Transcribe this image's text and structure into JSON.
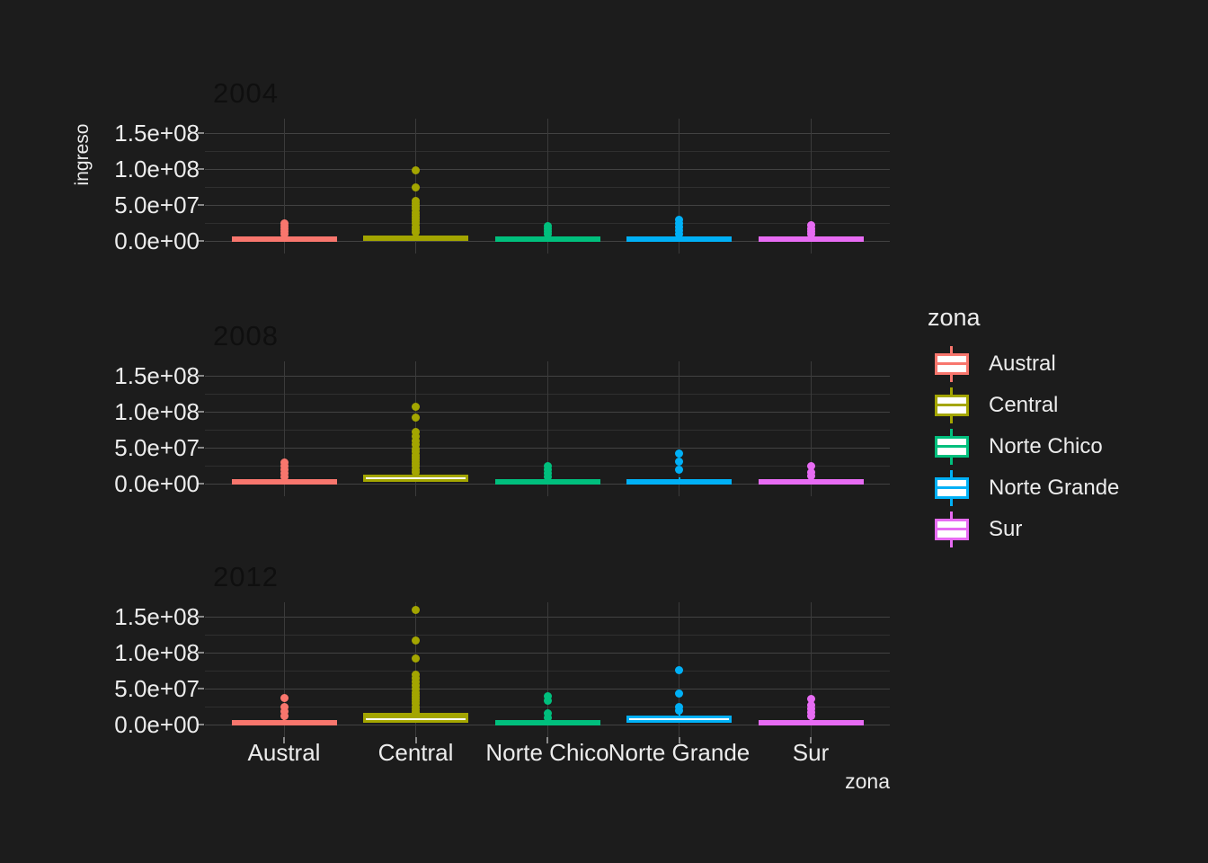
{
  "figure": {
    "background": "#1c1c1c",
    "text_color": "#ececec",
    "grid_major_color": "#424242",
    "grid_minor_color": "#2f2f2f",
    "grid_vertical_color": "#3b3b3b",
    "tick_mark_color": "#8a8a8a",
    "facet_title_color": "#0f0f0f"
  },
  "chart_data": {
    "type": "boxplot",
    "facet_variable": "year",
    "x_axis": {
      "label": "zona",
      "categories": [
        "Austral",
        "Central",
        "Norte Chico",
        "Norte Grande",
        "Sur"
      ]
    },
    "y_axis": {
      "label": "ingreso",
      "ticks": [
        {
          "value": 0,
          "label": "0.0e+00"
        },
        {
          "value": 50000000,
          "label": "5.0e+07"
        },
        {
          "value": 100000000,
          "label": "1.0e+08"
        },
        {
          "value": 150000000,
          "label": "1.5e+08"
        }
      ],
      "minor_tick_values": [
        25000000,
        75000000,
        125000000
      ],
      "range_bottom": -18750000,
      "range_top": 168750000
    },
    "legend": {
      "title": "zona",
      "items": [
        {
          "label": "Austral",
          "color": "#F8766D"
        },
        {
          "label": "Central",
          "color": "#A3A500"
        },
        {
          "label": "Norte Chico",
          "color": "#00BF7D"
        },
        {
          "label": "Norte Grande",
          "color": "#00B0F6"
        },
        {
          "label": "Sur",
          "color": "#E76BF3"
        }
      ]
    },
    "facets": [
      {
        "label": "2004",
        "series": [
          {
            "zona": "Austral",
            "color": "#F8766D",
            "box": {
              "q1": 1000000,
              "median": 3000000,
              "q3": 6000000,
              "whisker_high": 9000000
            },
            "outliers": [
              9000000,
              13000000,
              17000000,
              21000000,
              25000000
            ]
          },
          {
            "zona": "Central",
            "color": "#A3A500",
            "box": {
              "q1": 1000000,
              "median": 4000000,
              "q3": 8000000,
              "whisker_high": 12000000
            },
            "outliers": [
              12000000,
              16000000,
              20000000,
              24000000,
              28000000,
              32000000,
              36000000,
              40000000,
              44000000,
              48000000,
              52000000,
              56000000,
              75000000,
              98000000
            ]
          },
          {
            "zona": "Norte Chico",
            "color": "#00BF7D",
            "box": {
              "q1": 1000000,
              "median": 3000000,
              "q3": 6000000,
              "whisker_high": 9000000
            },
            "outliers": [
              9000000,
              13000000,
              17000000,
              21000000
            ]
          },
          {
            "zona": "Norte Grande",
            "color": "#00B0F6",
            "box": {
              "q1": 1000000,
              "median": 3000000,
              "q3": 6000000,
              "whisker_high": 9000000
            },
            "outliers": [
              10000000,
              15000000,
              20000000,
              25000000,
              30000000
            ]
          },
          {
            "zona": "Sur",
            "color": "#E76BF3",
            "box": {
              "q1": 1000000,
              "median": 3000000,
              "q3": 6000000,
              "whisker_high": 9000000
            },
            "outliers": [
              9000000,
              13000000,
              17000000,
              22000000
            ]
          }
        ]
      },
      {
        "label": "2008",
        "series": [
          {
            "zona": "Austral",
            "color": "#F8766D",
            "box": {
              "q1": 1000000,
              "median": 3000000,
              "q3": 6000000,
              "whisker_high": 9000000
            },
            "outliers": [
              10000000,
              15000000,
              20000000,
              25000000,
              30000000
            ]
          },
          {
            "zona": "Central",
            "color": "#A3A500",
            "box": {
              "q1": 2000000,
              "median": 7000000,
              "q3": 13000000,
              "whisker_high": 17000000
            },
            "outliers": [
              16000000,
              20000000,
              24000000,
              28000000,
              32000000,
              36000000,
              40000000,
              44000000,
              48000000,
              54000000,
              60000000,
              66000000,
              72000000,
              92000000,
              107000000
            ]
          },
          {
            "zona": "Norte Chico",
            "color": "#00BF7D",
            "box": {
              "q1": 1000000,
              "median": 3000000,
              "q3": 6000000,
              "whisker_high": 9000000
            },
            "outliers": [
              10000000,
              15000000,
              20000000,
              25000000
            ]
          },
          {
            "zona": "Norte Grande",
            "color": "#00B0F6",
            "box": {
              "q1": 1000000,
              "median": 3000000,
              "q3": 6000000,
              "whisker_high": 9000000
            },
            "outliers": [
              19000000,
              31000000,
              42000000
            ]
          },
          {
            "zona": "Sur",
            "color": "#E76BF3",
            "box": {
              "q1": 1000000,
              "median": 3000000,
              "q3": 6000000,
              "whisker_high": 9000000
            },
            "outliers": [
              11000000,
              16000000,
              24000000
            ]
          }
        ]
      },
      {
        "label": "2012",
        "series": [
          {
            "zona": "Austral",
            "color": "#F8766D",
            "box": {
              "q1": 1000000,
              "median": 3000000,
              "q3": 6000000,
              "whisker_high": 9000000
            },
            "outliers": [
              12000000,
              18000000,
              24000000,
              37000000
            ]
          },
          {
            "zona": "Central",
            "color": "#A3A500",
            "box": {
              "q1": 3000000,
              "median": 11000000,
              "q3": 16000000,
              "whisker_high": 22000000
            },
            "outliers": [
              17000000,
              21000000,
              25000000,
              29000000,
              33000000,
              37000000,
              41000000,
              45000000,
              50000000,
              55000000,
              60000000,
              65000000,
              70000000,
              92000000,
              117000000,
              160000000
            ]
          },
          {
            "zona": "Norte Chico",
            "color": "#00BF7D",
            "box": {
              "q1": 1000000,
              "median": 3000000,
              "q3": 6000000,
              "whisker_high": 9000000
            },
            "outliers": [
              10000000,
              16000000,
              33000000,
              39000000
            ]
          },
          {
            "zona": "Norte Grande",
            "color": "#00B0F6",
            "box": {
              "q1": 2000000,
              "median": 6000000,
              "q3": 12000000,
              "whisker_high": 15000000
            },
            "outliers": [
              19000000,
              25000000,
              43000000,
              76000000
            ]
          },
          {
            "zona": "Sur",
            "color": "#E76BF3",
            "box": {
              "q1": 1000000,
              "median": 3000000,
              "q3": 6000000,
              "whisker_high": 9000000
            },
            "outliers": [
              12000000,
              17000000,
              22000000,
              27000000,
              36000000
            ]
          }
        ]
      }
    ]
  }
}
